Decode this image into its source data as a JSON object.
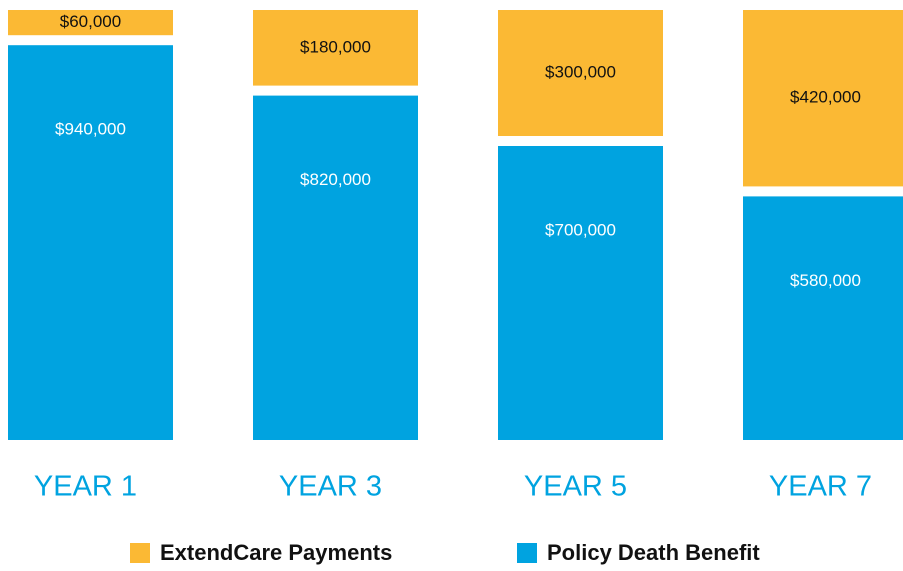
{
  "chart_data": {
    "type": "stacked_bar",
    "categories": [
      "YEAR 1",
      "YEAR 3",
      "YEAR 5",
      "YEAR 7"
    ],
    "series": [
      {
        "name": "ExtendCare Payments",
        "color": "#fbb934",
        "values": [
          60000,
          180000,
          300000,
          420000
        ],
        "value_labels": [
          "$60,000",
          "$180,000",
          "$300,000",
          "$420,000"
        ]
      },
      {
        "name": "Policy Death Benefit",
        "color": "#00a3e0",
        "values": [
          940000,
          820000,
          700000,
          580000
        ],
        "value_labels": [
          "$940,000",
          "$820,000",
          "$700,000",
          "$580,000"
        ]
      }
    ]
  }
}
